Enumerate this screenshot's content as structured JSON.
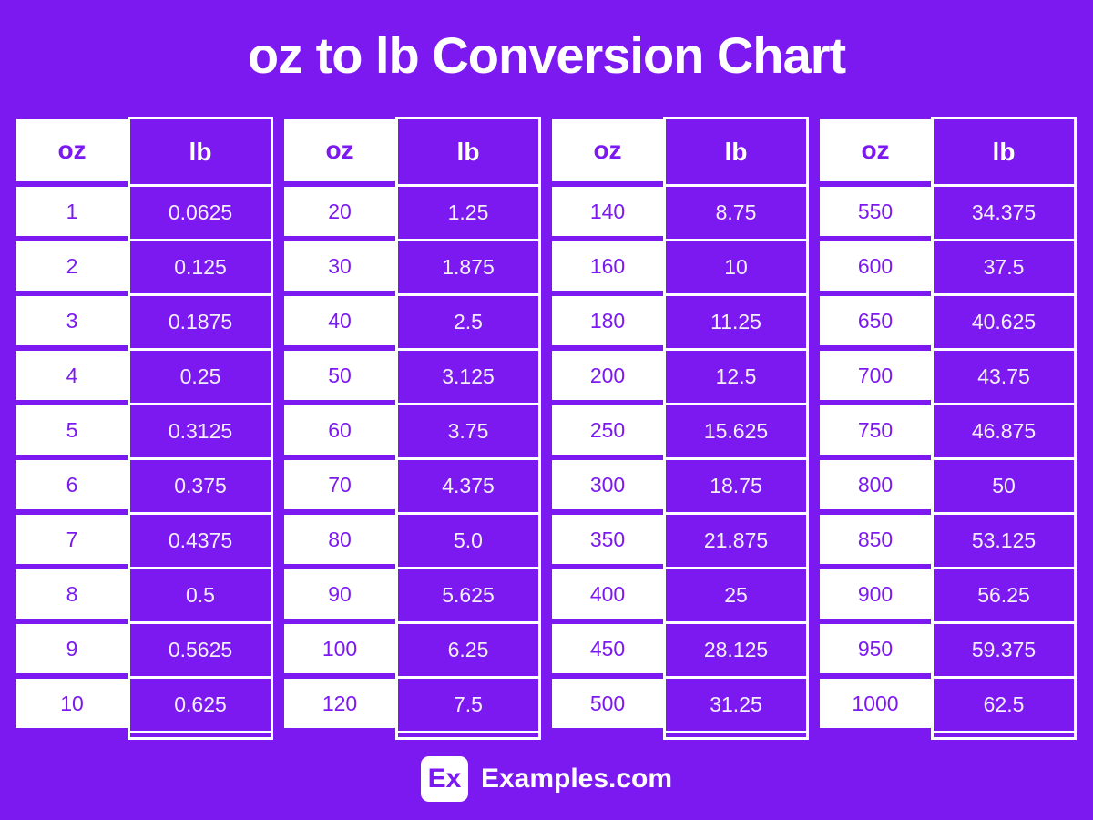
{
  "title": "oz to lb Conversion Chart",
  "column_headers": {
    "oz": "oz",
    "lb": "lb"
  },
  "tables": [
    {
      "rows": [
        [
          "1",
          "0.0625"
        ],
        [
          "2",
          "0.125"
        ],
        [
          "3",
          "0.1875"
        ],
        [
          "4",
          "0.25"
        ],
        [
          "5",
          "0.3125"
        ],
        [
          "6",
          "0.375"
        ],
        [
          "7",
          "0.4375"
        ],
        [
          "8",
          "0.5"
        ],
        [
          "9",
          "0.5625"
        ],
        [
          "10",
          "0.625"
        ]
      ]
    },
    {
      "rows": [
        [
          "20",
          "1.25"
        ],
        [
          "30",
          "1.875"
        ],
        [
          "40",
          "2.5"
        ],
        [
          "50",
          "3.125"
        ],
        [
          "60",
          "3.75"
        ],
        [
          "70",
          "4.375"
        ],
        [
          "80",
          "5.0"
        ],
        [
          "90",
          "5.625"
        ],
        [
          "100",
          "6.25"
        ],
        [
          "120",
          "7.5"
        ]
      ]
    },
    {
      "rows": [
        [
          "140",
          "8.75"
        ],
        [
          "160",
          "10"
        ],
        [
          "180",
          "11.25"
        ],
        [
          "200",
          "12.5"
        ],
        [
          "250",
          "15.625"
        ],
        [
          "300",
          "18.75"
        ],
        [
          "350",
          "21.875"
        ],
        [
          "400",
          "25"
        ],
        [
          "450",
          "28.125"
        ],
        [
          "500",
          "31.25"
        ]
      ]
    },
    {
      "rows": [
        [
          "550",
          "34.375"
        ],
        [
          "600",
          "37.5"
        ],
        [
          "650",
          "40.625"
        ],
        [
          "700",
          "43.75"
        ],
        [
          "750",
          "46.875"
        ],
        [
          "800",
          "50"
        ],
        [
          "850",
          "53.125"
        ],
        [
          "900",
          "56.25"
        ],
        [
          "950",
          "59.375"
        ],
        [
          "1000",
          "62.5"
        ]
      ]
    }
  ],
  "footer": {
    "logo_text": "Ex",
    "site_name": "Examples.com"
  },
  "colors": {
    "background": "#7C19F0",
    "cell_purple": "#7C19F0",
    "oz_text": "#7C19F0",
    "lb_text": "#F3EEFB",
    "white": "#FFFFFF"
  },
  "chart_data": {
    "type": "table",
    "title": "oz to lb Conversion Chart",
    "columns": [
      "oz",
      "lb"
    ],
    "rows": [
      [
        1,
        0.0625
      ],
      [
        2,
        0.125
      ],
      [
        3,
        0.1875
      ],
      [
        4,
        0.25
      ],
      [
        5,
        0.3125
      ],
      [
        6,
        0.375
      ],
      [
        7,
        0.4375
      ],
      [
        8,
        0.5
      ],
      [
        9,
        0.5625
      ],
      [
        10,
        0.625
      ],
      [
        20,
        1.25
      ],
      [
        30,
        1.875
      ],
      [
        40,
        2.5
      ],
      [
        50,
        3.125
      ],
      [
        60,
        3.75
      ],
      [
        70,
        4.375
      ],
      [
        80,
        5.0
      ],
      [
        90,
        5.625
      ],
      [
        100,
        6.25
      ],
      [
        120,
        7.5
      ],
      [
        140,
        8.75
      ],
      [
        160,
        10
      ],
      [
        180,
        11.25
      ],
      [
        200,
        12.5
      ],
      [
        250,
        15.625
      ],
      [
        300,
        18.75
      ],
      [
        350,
        21.875
      ],
      [
        400,
        25
      ],
      [
        450,
        28.125
      ],
      [
        500,
        31.25
      ],
      [
        550,
        34.375
      ],
      [
        600,
        37.5
      ],
      [
        650,
        40.625
      ],
      [
        700,
        43.75
      ],
      [
        750,
        46.875
      ],
      [
        800,
        50
      ],
      [
        850,
        53.125
      ],
      [
        900,
        56.25
      ],
      [
        950,
        59.375
      ],
      [
        1000,
        62.5
      ]
    ]
  }
}
